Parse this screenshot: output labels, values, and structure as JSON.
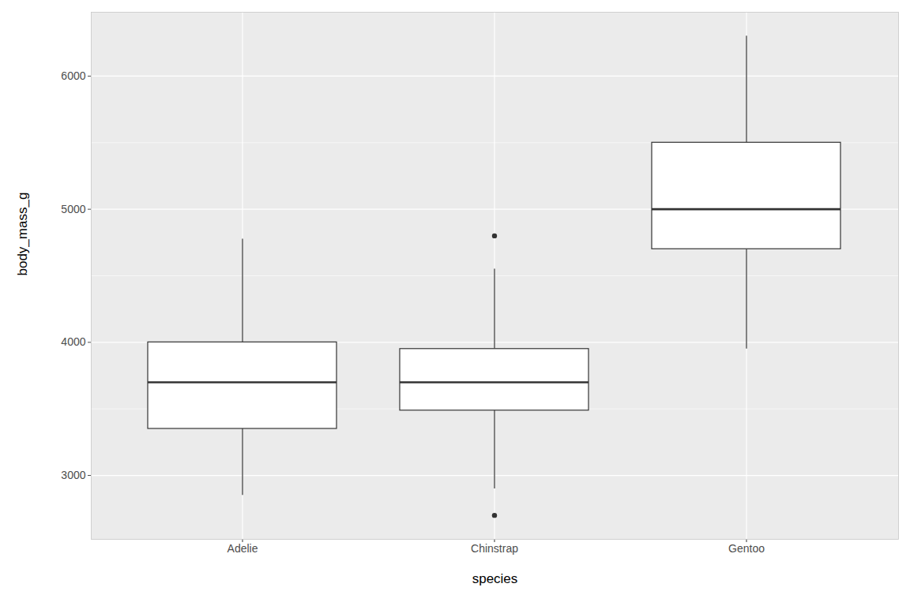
{
  "chart_data": {
    "type": "box",
    "x_label": "species",
    "y_label": "body_mass_g",
    "categories": [
      "Adelie",
      "Chinstrap",
      "Gentoo"
    ],
    "whisker_low": [
      2850,
      2900,
      3950
    ],
    "q1": [
      3350,
      3487.5,
      4700
    ],
    "median": [
      3700,
      3700,
      5000
    ],
    "q3": [
      4000,
      3950,
      5500
    ],
    "whisker_high": [
      4775,
      4550,
      6300
    ],
    "outliers": [
      [],
      [
        2700,
        4800
      ],
      []
    ],
    "ylim": [
      2520,
      6480
    ],
    "yticks": [
      3000,
      4000,
      5000,
      6000
    ],
    "grid": true
  }
}
